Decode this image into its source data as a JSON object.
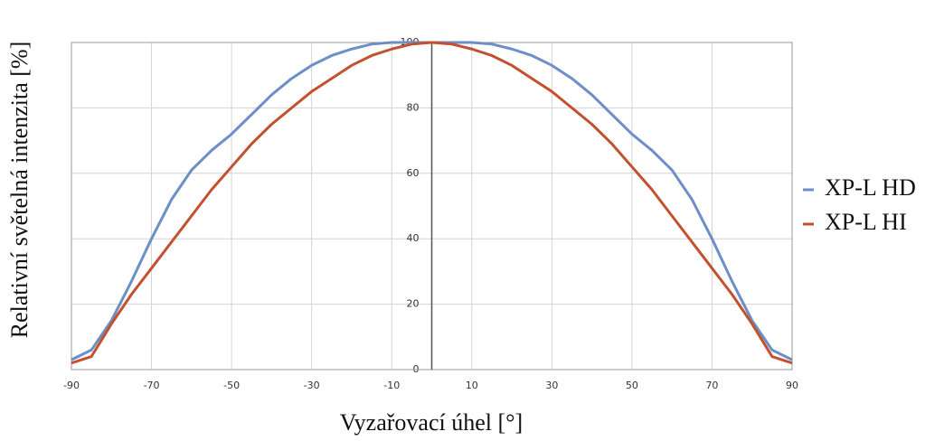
{
  "chart_data": {
    "type": "line",
    "x_label": "Vyzařovací úhel [°]",
    "y_label": "Relativní světelná intenzita [%]",
    "x": [
      -90,
      -85,
      -80,
      -75,
      -70,
      -65,
      -60,
      -55,
      -50,
      -45,
      -40,
      -35,
      -30,
      -25,
      -20,
      -15,
      -10,
      -5,
      0,
      5,
      10,
      15,
      20,
      25,
      30,
      35,
      40,
      45,
      50,
      55,
      60,
      65,
      70,
      75,
      80,
      85,
      90
    ],
    "series": [
      {
        "name": "XP-L HD",
        "color": "#6b8fc6",
        "values": [
          3,
          6,
          15,
          27,
          40,
          52,
          61,
          67,
          72,
          78,
          84,
          89,
          93,
          96,
          98,
          99.5,
          100,
          100,
          100,
          100,
          100,
          99.5,
          98,
          96,
          93,
          89,
          84,
          78,
          72,
          67,
          61,
          52,
          40,
          27,
          15,
          6,
          3
        ]
      },
      {
        "name": "XP-L HI",
        "color": "#c3502f",
        "values": [
          2,
          4,
          14,
          23,
          31,
          39,
          47,
          55,
          62,
          69,
          75,
          80,
          85,
          89,
          93,
          96,
          98,
          99.5,
          100,
          99.5,
          98,
          96,
          93,
          89,
          85,
          80,
          75,
          69,
          62,
          55,
          47,
          39,
          31,
          23,
          14,
          4,
          2
        ]
      }
    ],
    "xlim": [
      -90,
      90
    ],
    "ylim": [
      0,
      100
    ],
    "xticks": [
      -90,
      -70,
      -50,
      -30,
      -10,
      10,
      30,
      50,
      70,
      90
    ],
    "yticks": [
      0,
      20,
      40,
      60,
      80,
      100
    ],
    "grid": true,
    "legend": "right"
  }
}
